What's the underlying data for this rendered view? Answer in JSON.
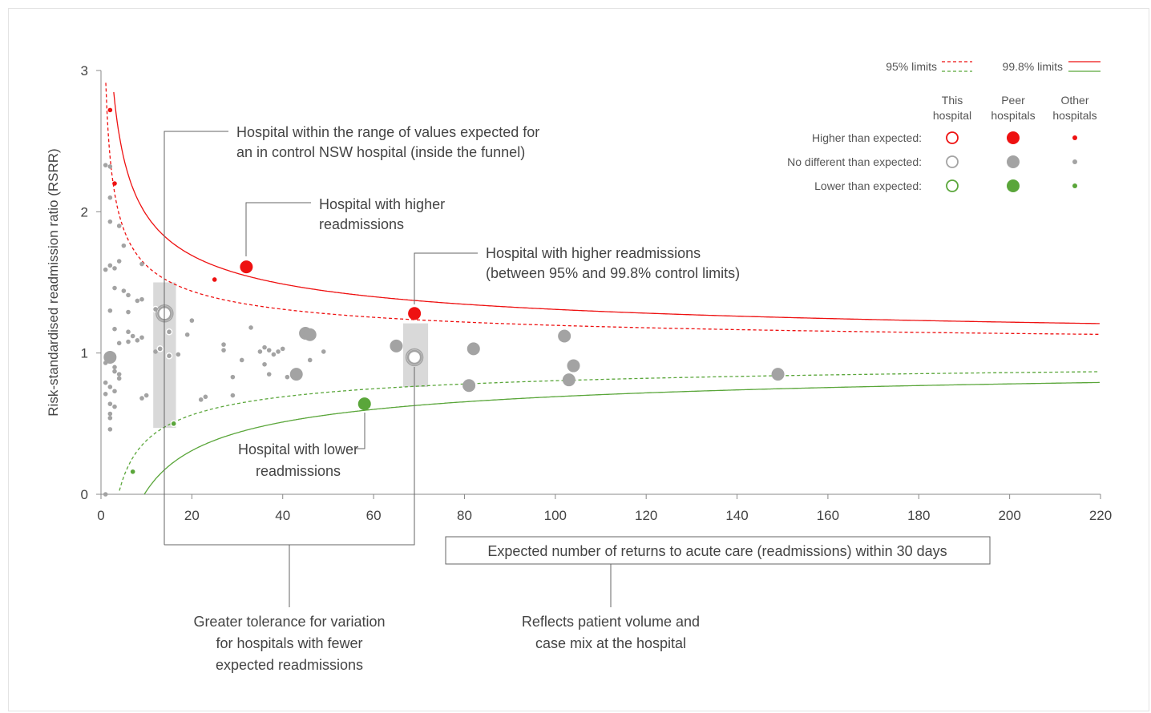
{
  "chart_data": {
    "type": "scatter",
    "title": "",
    "xlabel": "Expected number of returns to acute care (readmissions) within 30 days",
    "ylabel": "Risk-standardised readmission ratio (RSRR)",
    "xlim": [
      0,
      220
    ],
    "ylim": [
      0,
      3
    ],
    "x_ticks": [
      "0",
      "20",
      "40",
      "60",
      "80",
      "100",
      "120",
      "140",
      "160",
      "180",
      "200",
      "220"
    ],
    "y_ticks": [
      "0",
      "1",
      "2",
      "3"
    ],
    "grid": false,
    "legend": {
      "position": "top-right",
      "limits": [
        {
          "label": "95% limits",
          "style": "dashed"
        },
        {
          "label": "99.8% limits",
          "style": "solid"
        }
      ],
      "columns": [
        "This\nhospital",
        "Peer\nhospitals",
        "Other\nhospitals"
      ],
      "rows": [
        {
          "label": "Higher than expected:",
          "color": "#ee1111"
        },
        {
          "label": "No different than expected:",
          "color": "#a3a3a3"
        },
        {
          "label": "Lower than expected:",
          "color": "#5aa63a"
        }
      ]
    },
    "limit_lines": [
      {
        "name": "95% upper",
        "color": "#ee1111",
        "style": "dashed",
        "z": 1.96
      },
      {
        "name": "95% lower",
        "color": "#5aa63a",
        "style": "dashed",
        "z": -1.96
      },
      {
        "name": "99.8% upper",
        "color": "#ee1111",
        "style": "solid",
        "z": 3.09
      },
      {
        "name": "99.8% lower",
        "color": "#5aa63a",
        "style": "solid",
        "z": -3.09
      }
    ],
    "this_hospital": [
      {
        "x": 14,
        "y": 1.28,
        "category": "no-different"
      },
      {
        "x": 69,
        "y": 0.97,
        "category": "no-different"
      }
    ],
    "peer_hospitals": [
      {
        "x": 2,
        "y": 0.97,
        "category": "no-different"
      },
      {
        "x": 32,
        "y": 1.61,
        "category": "higher"
      },
      {
        "x": 69,
        "y": 1.28,
        "category": "higher"
      },
      {
        "x": 58,
        "y": 0.64,
        "category": "lower"
      },
      {
        "x": 43,
        "y": 0.85,
        "category": "no-different"
      },
      {
        "x": 45,
        "y": 1.14,
        "category": "no-different"
      },
      {
        "x": 46,
        "y": 1.13,
        "category": "no-different"
      },
      {
        "x": 65,
        "y": 1.05,
        "category": "no-different"
      },
      {
        "x": 82,
        "y": 1.03,
        "category": "no-different"
      },
      {
        "x": 81,
        "y": 0.77,
        "category": "no-different"
      },
      {
        "x": 102,
        "y": 1.12,
        "category": "no-different"
      },
      {
        "x": 103,
        "y": 0.81,
        "category": "no-different"
      },
      {
        "x": 104,
        "y": 0.91,
        "category": "no-different"
      },
      {
        "x": 149,
        "y": 0.85,
        "category": "no-different"
      }
    ],
    "other_hospitals": [
      {
        "x": 2,
        "y": 2.72,
        "category": "higher"
      },
      {
        "x": 3,
        "y": 2.2,
        "category": "higher"
      },
      {
        "x": 25,
        "y": 1.52,
        "category": "higher"
      },
      {
        "x": 16,
        "y": 0.5,
        "category": "lower"
      },
      {
        "x": 7,
        "y": 0.16,
        "category": "lower"
      },
      {
        "x": 1,
        "y": 2.33,
        "category": "no-different"
      },
      {
        "x": 2,
        "y": 2.32,
        "category": "no-different"
      },
      {
        "x": 2,
        "y": 2.1,
        "category": "no-different"
      },
      {
        "x": 2,
        "y": 1.93,
        "category": "no-different"
      },
      {
        "x": 4,
        "y": 1.9,
        "category": "no-different"
      },
      {
        "x": 5,
        "y": 1.76,
        "category": "no-different"
      },
      {
        "x": 3,
        "y": 1.6,
        "category": "no-different"
      },
      {
        "x": 4,
        "y": 1.65,
        "category": "no-different"
      },
      {
        "x": 1,
        "y": 1.59,
        "category": "no-different"
      },
      {
        "x": 2,
        "y": 1.62,
        "category": "no-different"
      },
      {
        "x": 9,
        "y": 1.63,
        "category": "no-different"
      },
      {
        "x": 3,
        "y": 1.46,
        "category": "no-different"
      },
      {
        "x": 5,
        "y": 1.44,
        "category": "no-different"
      },
      {
        "x": 6,
        "y": 1.41,
        "category": "no-different"
      },
      {
        "x": 8,
        "y": 1.37,
        "category": "no-different"
      },
      {
        "x": 9,
        "y": 1.38,
        "category": "no-different"
      },
      {
        "x": 2,
        "y": 1.3,
        "category": "no-different"
      },
      {
        "x": 6,
        "y": 1.29,
        "category": "no-different"
      },
      {
        "x": 3,
        "y": 1.17,
        "category": "no-different"
      },
      {
        "x": 6,
        "y": 1.15,
        "category": "no-different"
      },
      {
        "x": 7,
        "y": 1.12,
        "category": "no-different"
      },
      {
        "x": 9,
        "y": 1.11,
        "category": "no-different"
      },
      {
        "x": 4,
        "y": 1.07,
        "category": "no-different"
      },
      {
        "x": 6,
        "y": 1.08,
        "category": "no-different"
      },
      {
        "x": 8,
        "y": 1.09,
        "category": "no-different"
      },
      {
        "x": 1,
        "y": 0.93,
        "category": "no-different"
      },
      {
        "x": 3,
        "y": 0.9,
        "category": "no-different"
      },
      {
        "x": 3,
        "y": 0.87,
        "category": "no-different"
      },
      {
        "x": 4,
        "y": 0.85,
        "category": "no-different"
      },
      {
        "x": 4,
        "y": 0.82,
        "category": "no-different"
      },
      {
        "x": 1,
        "y": 0.79,
        "category": "no-different"
      },
      {
        "x": 2,
        "y": 0.76,
        "category": "no-different"
      },
      {
        "x": 3,
        "y": 0.73,
        "category": "no-different"
      },
      {
        "x": 1,
        "y": 0.71,
        "category": "no-different"
      },
      {
        "x": 2,
        "y": 0.64,
        "category": "no-different"
      },
      {
        "x": 3,
        "y": 0.62,
        "category": "no-different"
      },
      {
        "x": 2,
        "y": 0.57,
        "category": "no-different"
      },
      {
        "x": 2,
        "y": 0.54,
        "category": "no-different"
      },
      {
        "x": 2,
        "y": 0.46,
        "category": "no-different"
      },
      {
        "x": 10,
        "y": 0.7,
        "category": "no-different"
      },
      {
        "x": 9,
        "y": 0.68,
        "category": "no-different"
      },
      {
        "x": 12,
        "y": 1.31,
        "category": "no-different"
      },
      {
        "x": 12,
        "y": 1.01,
        "category": "no-different"
      },
      {
        "x": 13,
        "y": 1.03,
        "category": "no-different"
      },
      {
        "x": 15,
        "y": 1.15,
        "category": "no-different"
      },
      {
        "x": 15,
        "y": 0.98,
        "category": "no-different"
      },
      {
        "x": 17,
        "y": 0.99,
        "category": "no-different"
      },
      {
        "x": 19,
        "y": 1.13,
        "category": "no-different"
      },
      {
        "x": 20,
        "y": 1.23,
        "category": "no-different"
      },
      {
        "x": 22,
        "y": 0.67,
        "category": "no-different"
      },
      {
        "x": 23,
        "y": 0.69,
        "category": "no-different"
      },
      {
        "x": 27,
        "y": 1.06,
        "category": "no-different"
      },
      {
        "x": 27,
        "y": 1.02,
        "category": "no-different"
      },
      {
        "x": 29,
        "y": 0.83,
        "category": "no-different"
      },
      {
        "x": 29,
        "y": 0.7,
        "category": "no-different"
      },
      {
        "x": 31,
        "y": 0.95,
        "category": "no-different"
      },
      {
        "x": 33,
        "y": 1.18,
        "category": "no-different"
      },
      {
        "x": 35,
        "y": 1.01,
        "category": "no-different"
      },
      {
        "x": 36,
        "y": 1.04,
        "category": "no-different"
      },
      {
        "x": 36,
        "y": 0.92,
        "category": "no-different"
      },
      {
        "x": 37,
        "y": 1.02,
        "category": "no-different"
      },
      {
        "x": 37,
        "y": 0.85,
        "category": "no-different"
      },
      {
        "x": 38,
        "y": 0.99,
        "category": "no-different"
      },
      {
        "x": 39,
        "y": 1.01,
        "category": "no-different"
      },
      {
        "x": 40,
        "y": 1.03,
        "category": "no-different"
      },
      {
        "x": 41,
        "y": 0.83,
        "category": "no-different"
      },
      {
        "x": 46,
        "y": 0.95,
        "category": "no-different"
      },
      {
        "x": 49,
        "y": 1.01,
        "category": "no-different"
      },
      {
        "x": 1,
        "y": 0.0,
        "category": "no-different"
      }
    ],
    "annotations": [
      {
        "text": "Hospital within the range of values expected for\nan in control NSW hospital (inside the funnel)"
      },
      {
        "text": "Hospital with higher\nreadmissions"
      },
      {
        "text": "Hospital with higher readmissions\n(between 95% and 99.8% control limits)"
      },
      {
        "text": "Hospital with lower\nreadmissions"
      },
      {
        "text": "Greater tolerance for variation\nfor hospitals with fewer\nexpected readmissions"
      },
      {
        "text": "Reflects patient volume and\ncase mix at the hospital"
      }
    ]
  }
}
